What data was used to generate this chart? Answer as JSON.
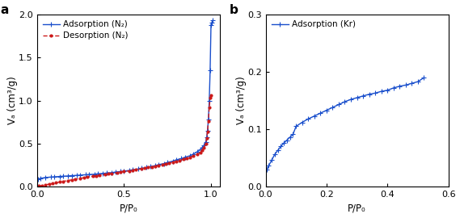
{
  "panel_a": {
    "label": "a",
    "adsorption_x": [
      0.005,
      0.02,
      0.05,
      0.08,
      0.1,
      0.13,
      0.15,
      0.18,
      0.2,
      0.23,
      0.25,
      0.28,
      0.3,
      0.33,
      0.35,
      0.38,
      0.4,
      0.43,
      0.45,
      0.48,
      0.5,
      0.53,
      0.55,
      0.58,
      0.6,
      0.63,
      0.65,
      0.68,
      0.7,
      0.73,
      0.75,
      0.78,
      0.8,
      0.83,
      0.85,
      0.88,
      0.9,
      0.92,
      0.94,
      0.95,
      0.96,
      0.97,
      0.975,
      0.98,
      0.985,
      0.99,
      0.995,
      1.0,
      1.005,
      1.01
    ],
    "adsorption_y": [
      0.085,
      0.095,
      0.105,
      0.11,
      0.113,
      0.117,
      0.12,
      0.123,
      0.127,
      0.13,
      0.133,
      0.137,
      0.14,
      0.143,
      0.148,
      0.152,
      0.157,
      0.162,
      0.168,
      0.174,
      0.18,
      0.187,
      0.195,
      0.203,
      0.212,
      0.222,
      0.232,
      0.243,
      0.255,
      0.267,
      0.28,
      0.295,
      0.31,
      0.325,
      0.34,
      0.358,
      0.38,
      0.403,
      0.43,
      0.455,
      0.48,
      0.52,
      0.57,
      0.65,
      0.78,
      1.0,
      1.35,
      1.88,
      1.91,
      1.93
    ],
    "desorption_x": [
      0.01,
      0.03,
      0.05,
      0.07,
      0.09,
      0.11,
      0.13,
      0.15,
      0.18,
      0.2,
      0.22,
      0.25,
      0.27,
      0.29,
      0.32,
      0.34,
      0.36,
      0.39,
      0.41,
      0.43,
      0.46,
      0.48,
      0.5,
      0.53,
      0.55,
      0.57,
      0.6,
      0.62,
      0.64,
      0.66,
      0.68,
      0.7,
      0.72,
      0.74,
      0.76,
      0.78,
      0.8,
      0.82,
      0.84,
      0.86,
      0.88,
      0.9,
      0.92,
      0.94,
      0.95,
      0.96,
      0.97,
      0.975,
      0.98,
      0.985,
      0.99,
      0.995,
      1.0
    ],
    "desorption_y": [
      0.005,
      0.012,
      0.02,
      0.028,
      0.036,
      0.044,
      0.052,
      0.06,
      0.07,
      0.078,
      0.086,
      0.095,
      0.103,
      0.11,
      0.118,
      0.125,
      0.132,
      0.14,
      0.147,
      0.153,
      0.16,
      0.167,
      0.174,
      0.182,
      0.19,
      0.197,
      0.205,
      0.213,
      0.221,
      0.229,
      0.237,
      0.246,
      0.255,
      0.264,
      0.273,
      0.282,
      0.293,
      0.304,
      0.315,
      0.327,
      0.34,
      0.356,
      0.374,
      0.396,
      0.42,
      0.452,
      0.5,
      0.56,
      0.64,
      0.76,
      0.92,
      1.03,
      1.06
    ],
    "xlabel": "P/P₀",
    "ylabel": "Vₐ (cm³/g)",
    "xlim": [
      0,
      1.05
    ],
    "ylim": [
      0,
      2.0
    ],
    "xticks": [
      0,
      0.5,
      1.0
    ],
    "yticks": [
      0,
      0.5,
      1.0,
      1.5,
      2.0
    ],
    "adsorption_label": "Adsorption (N₂)",
    "desorption_label": "Desorption (N₂)",
    "line_color": "#1a4fcc",
    "dashed_color": "#cc1a1a"
  },
  "panel_b": {
    "label": "b",
    "adsorption_x": [
      0.005,
      0.01,
      0.02,
      0.03,
      0.04,
      0.05,
      0.06,
      0.07,
      0.08,
      0.09,
      0.1,
      0.12,
      0.14,
      0.16,
      0.18,
      0.2,
      0.22,
      0.24,
      0.26,
      0.28,
      0.3,
      0.32,
      0.34,
      0.36,
      0.38,
      0.4,
      0.42,
      0.44,
      0.46,
      0.48,
      0.5,
      0.52
    ],
    "adsorption_y": [
      0.03,
      0.036,
      0.046,
      0.056,
      0.063,
      0.07,
      0.076,
      0.081,
      0.086,
      0.091,
      0.105,
      0.112,
      0.118,
      0.123,
      0.128,
      0.133,
      0.138,
      0.143,
      0.148,
      0.152,
      0.155,
      0.158,
      0.161,
      0.163,
      0.166,
      0.168,
      0.172,
      0.175,
      0.177,
      0.18,
      0.183,
      0.19
    ],
    "xlabel": "P/P₀",
    "ylabel": "Vₐ (cm³/g)",
    "xlim": [
      0,
      0.6
    ],
    "ylim": [
      0,
      0.3
    ],
    "xticks": [
      0,
      0.2,
      0.4,
      0.6
    ],
    "yticks": [
      0,
      0.1,
      0.2,
      0.3
    ],
    "adsorption_label": "Adsorption (Kr)",
    "line_color": "#1a4fcc"
  }
}
